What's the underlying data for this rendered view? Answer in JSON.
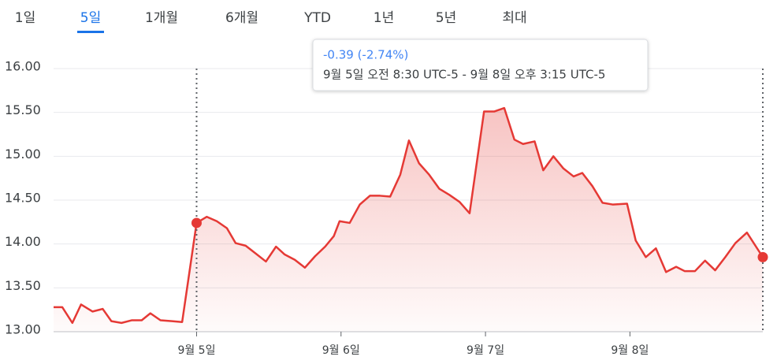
{
  "tabs": {
    "items": [
      "1일",
      "5일",
      "1개월",
      "6개월",
      "YTD",
      "1년",
      "5년",
      "최대"
    ],
    "selected": 1
  },
  "tooltip": {
    "change": "-0.39 (-2.74%)",
    "range": "9월 5일 오전 8:30 UTC-5 - 9월 8일 오후 3:15 UTC-5"
  },
  "chart_data": {
    "type": "area",
    "x": [
      4.01,
      4.07,
      4.14,
      4.2,
      4.28,
      4.35,
      4.41,
      4.48,
      4.55,
      4.62,
      4.68,
      4.75,
      4.83,
      4.9,
      5.0,
      5.07,
      5.14,
      5.21,
      5.27,
      5.34,
      5.41,
      5.48,
      5.55,
      5.61,
      5.68,
      5.75,
      5.82,
      5.89,
      5.95,
      5.99,
      6.06,
      6.13,
      6.2,
      6.27,
      6.34,
      6.41,
      6.47,
      6.54,
      6.61,
      6.68,
      6.75,
      6.82,
      6.89,
      6.99,
      7.06,
      7.13,
      7.2,
      7.26,
      7.34,
      7.4,
      7.47,
      7.54,
      7.61,
      7.67,
      7.74,
      7.81,
      7.88,
      7.98,
      8.04,
      8.11,
      8.18,
      8.25,
      8.32,
      8.38,
      8.45,
      8.52,
      8.59,
      8.66,
      8.73,
      8.81,
      8.92
    ],
    "series": [
      {
        "color": "#e53935",
        "values": [
          13.28,
          13.28,
          13.1,
          13.31,
          13.23,
          13.26,
          13.12,
          13.1,
          13.13,
          13.13,
          13.21,
          13.13,
          13.12,
          13.11,
          14.24,
          14.31,
          14.26,
          14.18,
          14.01,
          13.98,
          13.89,
          13.8,
          13.97,
          13.88,
          13.82,
          13.73,
          13.86,
          13.97,
          14.09,
          14.26,
          14.24,
          14.45,
          14.55,
          14.55,
          14.54,
          14.79,
          15.18,
          14.92,
          14.79,
          14.63,
          14.56,
          14.48,
          14.35,
          15.51,
          15.51,
          15.55,
          15.19,
          15.14,
          15.17,
          14.84,
          15.0,
          14.86,
          14.77,
          14.81,
          14.66,
          14.47,
          14.45,
          14.46,
          14.04,
          13.85,
          13.95,
          13.68,
          13.74,
          13.69,
          13.69,
          13.81,
          13.7,
          13.85,
          14.01,
          14.13,
          13.85
        ]
      }
    ],
    "xlim": [
      4.01,
      8.92
    ],
    "xticks": [
      {
        "value": 5,
        "label": "9월 5일"
      },
      {
        "value": 6,
        "label": "9월 6일"
      },
      {
        "value": 7,
        "label": "9월 7일"
      },
      {
        "value": 8,
        "label": "9월 8일"
      }
    ],
    "ylim": [
      13,
      16
    ],
    "yticks": [
      {
        "value": 13,
        "label": "13.00"
      },
      {
        "value": 13.5,
        "label": "13.50"
      },
      {
        "value": 14,
        "label": "14.00"
      },
      {
        "value": 14.5,
        "label": "14.50"
      },
      {
        "value": 15,
        "label": "15.00"
      },
      {
        "value": 15.5,
        "label": "15.50"
      },
      {
        "value": 16,
        "label": "16.00"
      }
    ],
    "grid": true,
    "highlight": [
      5.0,
      8.92
    ]
  }
}
